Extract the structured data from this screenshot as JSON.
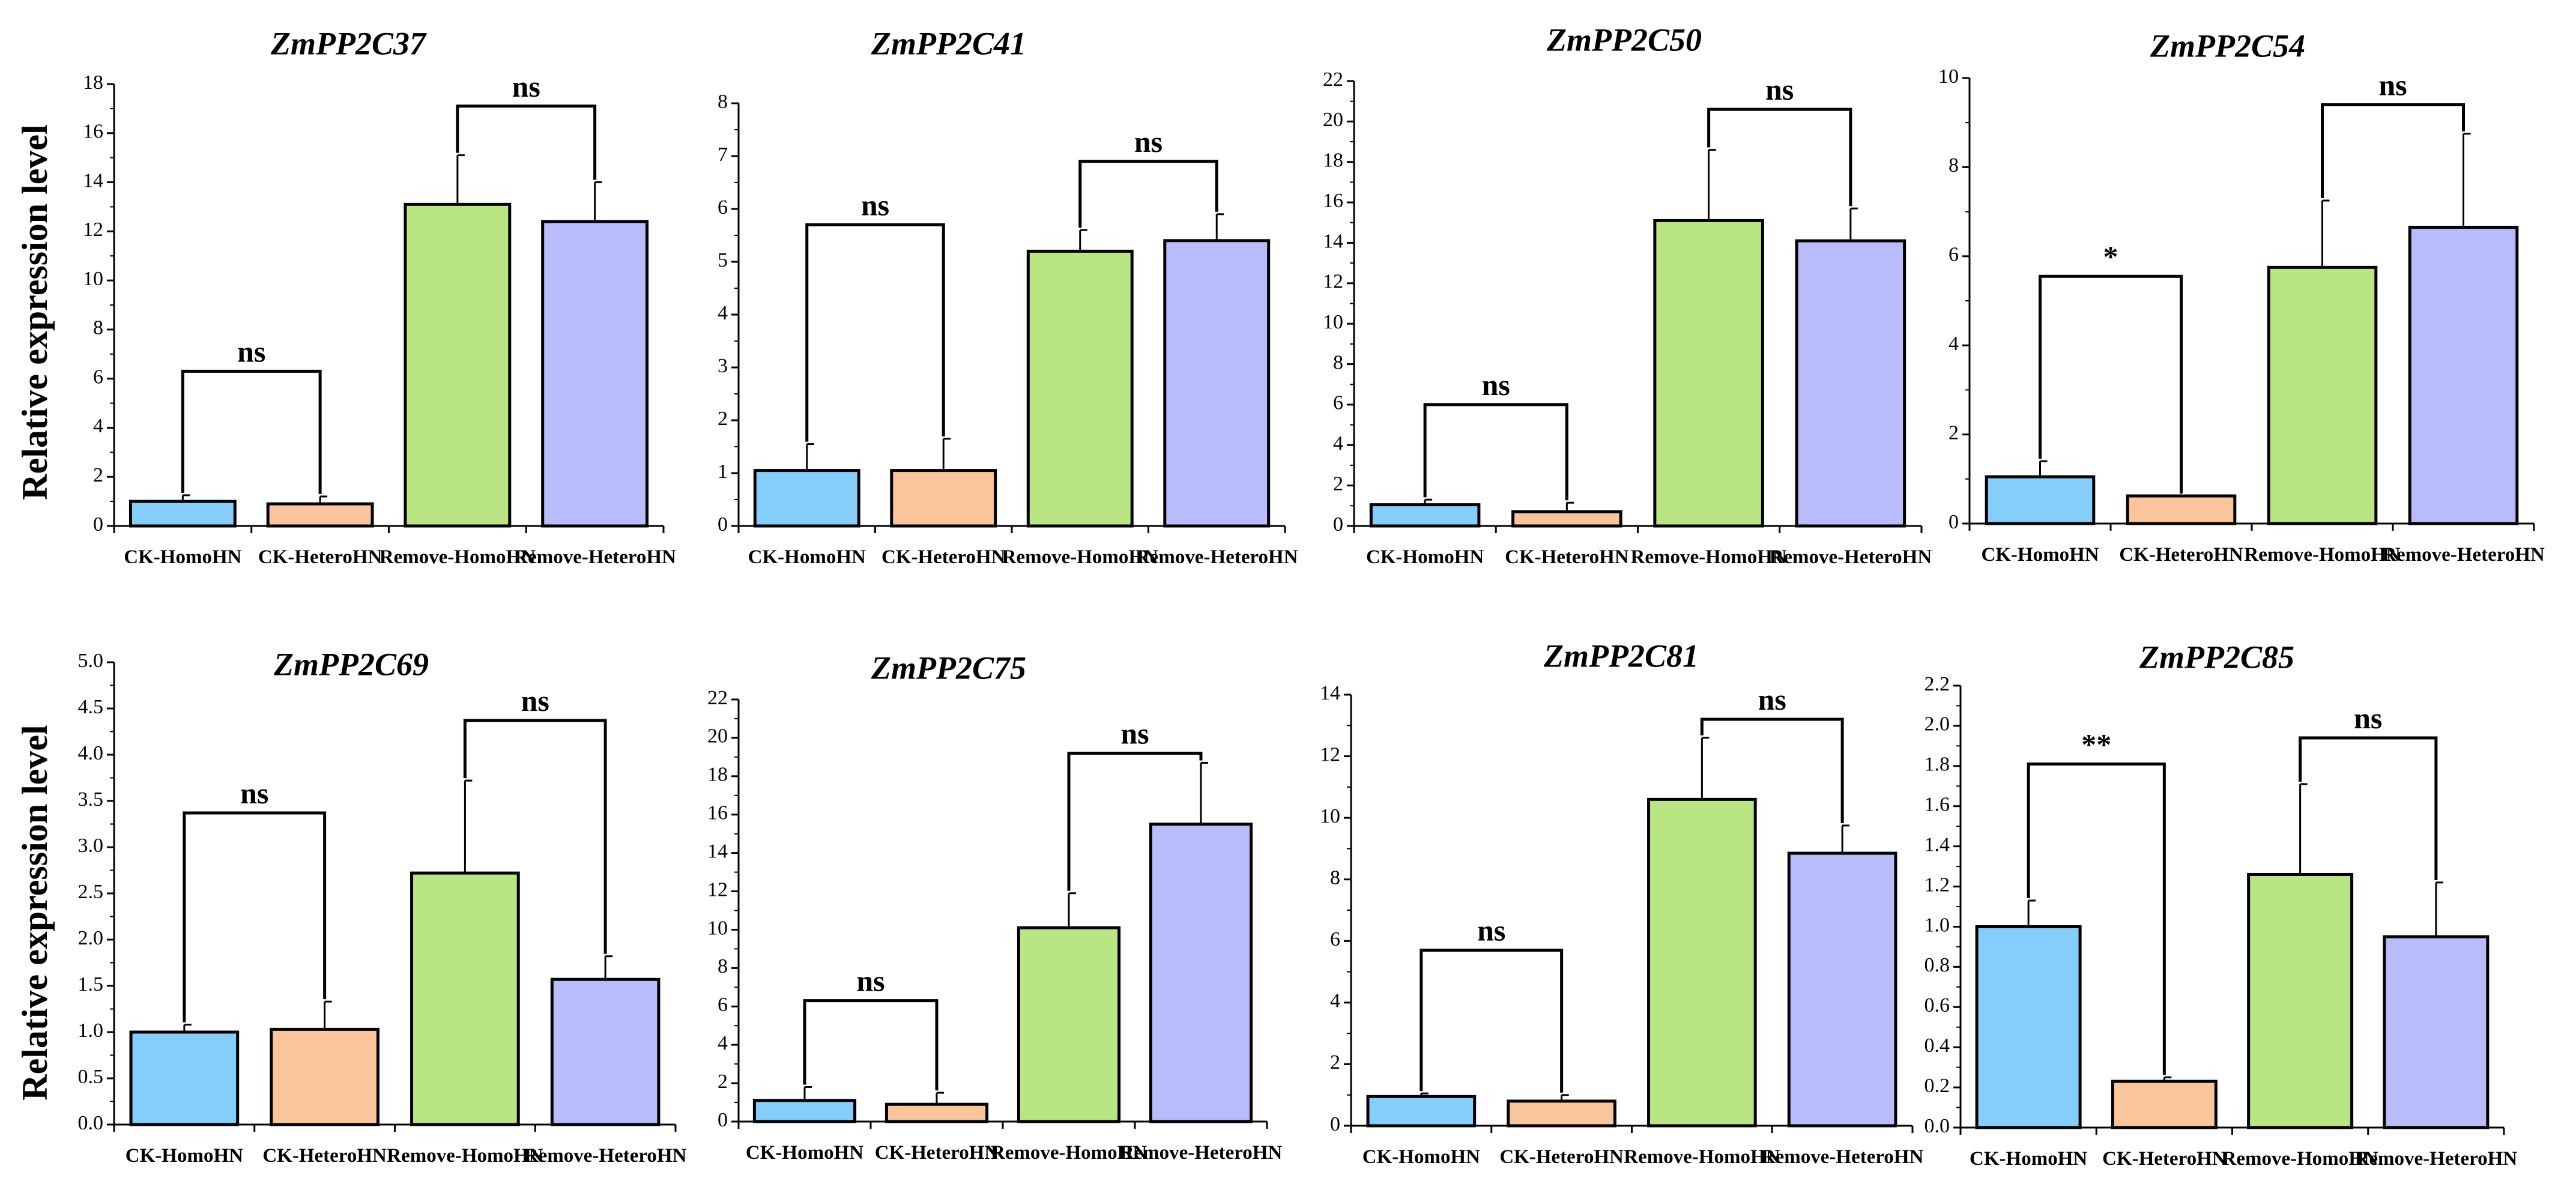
{
  "figure": {
    "ylabel": "Relative expression level",
    "colors": [
      "#85cdfb",
      "#fbc59c",
      "#b9e682",
      "#b9bcfb"
    ]
  },
  "chart_data": [
    {
      "type": "bar",
      "title": "ZmPP2C37",
      "ylabel": "Relative expression level",
      "ylim": [
        0,
        18
      ],
      "yticks": [
        "0",
        "2",
        "4",
        "6",
        "8",
        "10",
        "12",
        "14",
        "16",
        "18"
      ],
      "categories": [
        "CK-HomoHN",
        "CK-HeteroHN",
        "Remove-HomoHN",
        "Remove-HeteroHN"
      ],
      "values": [
        1.0,
        0.9,
        13.1,
        12.4
      ],
      "errors": [
        0.25,
        0.3,
        2.0,
        1.6
      ],
      "significance": [
        {
          "label": "ns",
          "from": 0,
          "to": 1,
          "y": 6.3
        },
        {
          "label": "ns",
          "from": 2,
          "to": 3,
          "y": 17.1
        }
      ]
    },
    {
      "type": "bar",
      "title": "ZmPP2C41",
      "ylim": [
        0,
        8
      ],
      "yticks": [
        "0",
        "1",
        "2",
        "3",
        "4",
        "5",
        "6",
        "7",
        "8"
      ],
      "categories": [
        "CK-HomoHN",
        "CK-HeteroHN",
        "Remove-HomoHN",
        "Remove-HeteroHN"
      ],
      "values": [
        1.05,
        1.05,
        5.2,
        5.4
      ],
      "errors": [
        0.5,
        0.6,
        0.4,
        0.5
      ],
      "significance": [
        {
          "label": "ns",
          "from": 0,
          "to": 1,
          "y": 5.7
        },
        {
          "label": "ns",
          "from": 2,
          "to": 3,
          "y": 6.9
        }
      ]
    },
    {
      "type": "bar",
      "title": "ZmPP2C50",
      "ylim": [
        0,
        22
      ],
      "yticks": [
        "0",
        "2",
        "4",
        "6",
        "8",
        "10",
        "12",
        "14",
        "16",
        "18",
        "20",
        "22"
      ],
      "categories": [
        "CK-HomoHN",
        "CK-HeteroHN",
        "Remove-HomoHN",
        "Remove-HeteroHN"
      ],
      "values": [
        1.05,
        0.7,
        15.1,
        14.1
      ],
      "errors": [
        0.25,
        0.45,
        3.5,
        1.6
      ],
      "significance": [
        {
          "label": "ns",
          "from": 0,
          "to": 1,
          "y": 6.0
        },
        {
          "label": "ns",
          "from": 2,
          "to": 3,
          "y": 20.6
        }
      ]
    },
    {
      "type": "bar",
      "title": "ZmPP2C54",
      "ylim": [
        0,
        10
      ],
      "yticks": [
        "0",
        "2",
        "4",
        "6",
        "8",
        "10"
      ],
      "categories": [
        "CK-HomoHN",
        "CK-HeteroHN",
        "Remove-HomoHN",
        "Remove-HeteroHN"
      ],
      "values": [
        1.05,
        0.62,
        5.75,
        6.65
      ],
      "errors": [
        0.35,
        0.0,
        1.5,
        2.1
      ],
      "significance": [
        {
          "label": "*",
          "from": 0,
          "to": 1,
          "y": 5.55
        },
        {
          "label": "ns",
          "from": 2,
          "to": 3,
          "y": 9.4
        }
      ]
    },
    {
      "type": "bar",
      "title": "ZmPP2C69",
      "ylabel": "Relative expression level",
      "ylim": [
        0,
        5.0
      ],
      "yticks": [
        "0.0",
        "0.5",
        "1.0",
        "1.5",
        "2.0",
        "2.5",
        "3.0",
        "3.5",
        "4.0",
        "4.5",
        "5.0"
      ],
      "categories": [
        "CK-HomoHN",
        "CK-HeteroHN",
        "Remove-HomoHN",
        "Remove-HeteroHN"
      ],
      "values": [
        1.0,
        1.03,
        2.72,
        1.57
      ],
      "errors": [
        0.08,
        0.3,
        1.0,
        0.25
      ],
      "significance": [
        {
          "label": "ns",
          "from": 0,
          "to": 1,
          "y": 3.37
        },
        {
          "label": "ns",
          "from": 2,
          "to": 3,
          "y": 4.37
        }
      ]
    },
    {
      "type": "bar",
      "title": "ZmPP2C75",
      "ylim": [
        0,
        22
      ],
      "yticks": [
        "0",
        "2",
        "4",
        "6",
        "8",
        "10",
        "12",
        "14",
        "16",
        "18",
        "20",
        "22"
      ],
      "categories": [
        "CK-HomoHN",
        "CK-HeteroHN",
        "Remove-HomoHN",
        "Remove-HeteroHN"
      ],
      "values": [
        1.1,
        0.9,
        10.1,
        15.5
      ],
      "errors": [
        0.7,
        0.6,
        1.8,
        3.2
      ],
      "significance": [
        {
          "label": "ns",
          "from": 0,
          "to": 1,
          "y": 6.3
        },
        {
          "label": "ns",
          "from": 2,
          "to": 3,
          "y": 19.2
        }
      ]
    },
    {
      "type": "bar",
      "title": "ZmPP2C81",
      "ylim": [
        0,
        14
      ],
      "yticks": [
        "0",
        "2",
        "4",
        "6",
        "8",
        "10",
        "12",
        "14"
      ],
      "categories": [
        "CK-HomoHN",
        "CK-HeteroHN",
        "Remove-HomoHN",
        "Remove-HeteroHN"
      ],
      "values": [
        0.95,
        0.8,
        10.6,
        8.85
      ],
      "errors": [
        0.1,
        0.2,
        2.0,
        0.9
      ],
      "significance": [
        {
          "label": "ns",
          "from": 0,
          "to": 1,
          "y": 5.7
        },
        {
          "label": "ns",
          "from": 2,
          "to": 3,
          "y": 13.2
        }
      ]
    },
    {
      "type": "bar",
      "title": "ZmPP2C85",
      "ylim": [
        0,
        2.2
      ],
      "yticks": [
        "0.0",
        "0.2",
        "0.4",
        "0.6",
        "0.8",
        "1.0",
        "1.2",
        "1.4",
        "1.6",
        "1.8",
        "2.0",
        "2.2"
      ],
      "categories": [
        "CK-HomoHN",
        "CK-HeteroHN",
        "Remove-HomoHN",
        "Remove-HeteroHN"
      ],
      "values": [
        1.0,
        0.23,
        1.26,
        0.95
      ],
      "errors": [
        0.13,
        0.02,
        0.45,
        0.27
      ],
      "significance": [
        {
          "label": "**",
          "from": 0,
          "to": 1,
          "y": 1.81
        },
        {
          "label": "ns",
          "from": 2,
          "to": 3,
          "y": 1.94
        }
      ]
    }
  ]
}
